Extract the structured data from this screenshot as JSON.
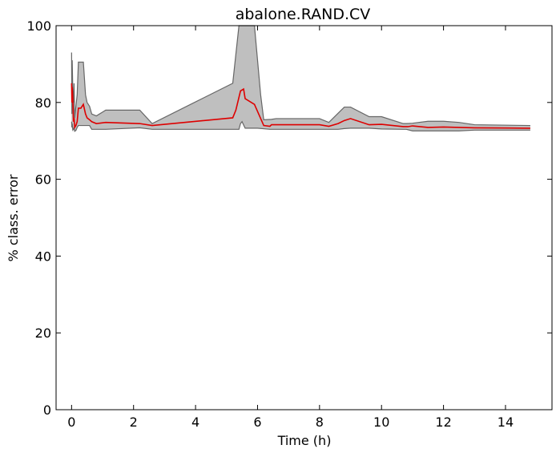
{
  "chart_data": {
    "type": "area",
    "title": "abalone.RAND.CV",
    "xlabel": "Time (h)",
    "ylabel": "% class. error",
    "xlim": [
      -0.5,
      15.5
    ],
    "ylim": [
      0,
      100
    ],
    "xticks": [
      0,
      2,
      4,
      6,
      8,
      10,
      12,
      14
    ],
    "yticks": [
      0,
      20,
      40,
      60,
      80,
      100
    ],
    "grid": false,
    "colors": {
      "mean_line": "#dd0000",
      "band_fill": "#bfbfbf",
      "band_edge": "#666666"
    },
    "series": [
      {
        "role": "mean",
        "x": [
          0.0,
          0.01,
          0.02,
          0.04,
          0.06,
          0.08,
          0.1,
          0.14,
          0.18,
          0.22,
          0.3,
          0.38,
          0.45,
          0.5,
          0.58,
          0.65,
          0.8,
          1.1,
          2.2,
          2.6,
          5.2,
          5.3,
          5.45,
          5.55,
          5.6,
          5.9,
          6.2,
          6.4,
          6.45,
          6.6,
          7.0,
          8.0,
          8.3,
          8.6,
          8.8,
          9.0,
          9.6,
          10.0,
          10.7,
          10.85,
          11.0,
          11.5,
          12.0,
          12.5,
          13.0,
          14.8
        ],
        "y": [
          85,
          80,
          84,
          81,
          75,
          76,
          73.5,
          74,
          75,
          78.5,
          78.5,
          79.5,
          77,
          76,
          75.5,
          75,
          74.5,
          74.8,
          74.5,
          74,
          76,
          78,
          83,
          83.5,
          81,
          79.5,
          74,
          73.8,
          74.2,
          74.2,
          74.2,
          74.2,
          73.8,
          74.5,
          75.3,
          75.8,
          74.2,
          74.3,
          73.7,
          73.7,
          73.9,
          73.5,
          73.6,
          73.5,
          73.4,
          73.3
        ]
      },
      {
        "role": "upper",
        "x": [
          0.0,
          0.01,
          0.02,
          0.04,
          0.06,
          0.08,
          0.1,
          0.14,
          0.18,
          0.22,
          0.3,
          0.38,
          0.45,
          0.5,
          0.58,
          0.65,
          0.8,
          1.1,
          2.2,
          2.6,
          5.2,
          5.4,
          5.9,
          6.1,
          6.2,
          6.45,
          6.6,
          7.0,
          8.0,
          8.3,
          8.6,
          8.8,
          9.0,
          9.6,
          10.0,
          10.7,
          10.8,
          11.0,
          11.5,
          12.0,
          12.5,
          13.0,
          14.8
        ],
        "y": [
          93,
          77,
          91,
          83,
          80,
          85,
          76,
          79,
          82,
          90.5,
          90.5,
          90.5,
          82,
          80,
          79,
          77,
          76.5,
          78,
          78,
          74.5,
          85,
          100,
          100,
          82,
          75.5,
          75.6,
          75.8,
          75.8,
          75.8,
          74.8,
          77.2,
          78.8,
          78.8,
          76.3,
          76.3,
          74.5,
          74.5,
          74.6,
          75.1,
          75.1,
          74.8,
          74.2,
          74
        ]
      },
      {
        "role": "lower",
        "x": [
          0.0,
          0.01,
          0.02,
          0.04,
          0.06,
          0.08,
          0.1,
          0.14,
          0.18,
          0.22,
          0.3,
          0.38,
          0.45,
          0.5,
          0.58,
          0.65,
          0.8,
          1.1,
          2.2,
          2.6,
          5.2,
          5.4,
          5.45,
          5.5,
          5.6,
          6.0,
          6.4,
          6.6,
          7.0,
          8.0,
          8.3,
          8.6,
          8.8,
          9.0,
          9.6,
          10.0,
          10.7,
          10.8,
          11.0,
          11.5,
          12.0,
          12.5,
          13.0,
          14.8
        ],
        "y": [
          75,
          73.5,
          74.5,
          72.8,
          73,
          73.5,
          72.5,
          72.7,
          73.5,
          74,
          74,
          74,
          74,
          74,
          74,
          73,
          73,
          73,
          73.4,
          73,
          73,
          73,
          74.5,
          75,
          73.3,
          73.3,
          73,
          73,
          73,
          73,
          73,
          73,
          73.2,
          73.3,
          73.3,
          73.1,
          73,
          73,
          72.6,
          72.6,
          72.6,
          72.6,
          72.8,
          72.8
        ]
      }
    ]
  }
}
